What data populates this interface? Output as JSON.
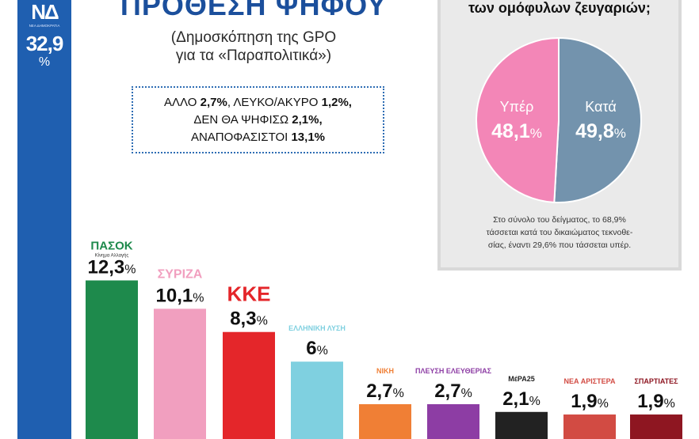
{
  "title": "ΠΡΟΘΕΣΗ ΨΗΦΟΥ",
  "subtitle_line1": "(Δημοσκόπηση της GPO",
  "subtitle_line2": "για τα «Παραπολιτικά»)",
  "info": [
    {
      "label": "ΑΛΛΟ",
      "value": "2,7%",
      "label2": "ΛΕΥΚΟ/ΑΚΥΡΟ",
      "value2": "1,2%,"
    },
    {
      "label": "ΔΕΝ ΘΑ ΨΗΦΙΣΩ",
      "value": "2,1%,"
    },
    {
      "label": "ΑΝΑΠΟΦΑΣΙΣΤΟΙ",
      "value": "13,1%"
    }
  ],
  "nd": {
    "logo": "ΝΔ",
    "logo_sub": "ΝΕΑ ΔΗΜΟΚΡΑΤΙΑ",
    "value": "32,9",
    "unit": "%"
  },
  "chart_data": [
    {
      "type": "bar",
      "title": "ΠΡΟΘΕΣΗ ΨΗΦΟΥ",
      "categories": [
        "ΝΔ",
        "ΠΑΣΟΚ",
        "ΣΥΡΙΖΑ",
        "ΚΚΕ",
        "ΕΛΛΗΝΙΚΗ ΛΥΣΗ",
        "ΝΙΚΗ",
        "ΠΛΕΥΣΗ ΕΛΕΥΘΕΡΙΑΣ",
        "ΜέΡΑ25",
        "ΝΕΑ ΑΡΙΣΤΕΡΑ",
        "ΣΠΑΡΤΙΑΤΕΣ"
      ],
      "values": [
        32.9,
        12.3,
        10.1,
        8.3,
        6,
        2.7,
        2.7,
        2.1,
        1.9,
        1.9
      ],
      "value_labels": [
        "32,9",
        "12,3",
        "10,1",
        "8,3",
        "6",
        "2,7",
        "2,7",
        "2,1",
        "1,9",
        "1,9"
      ],
      "unit": "%",
      "logo_texts": [
        "ΝΔ",
        "ΠΑΣΟΚ",
        "ΣΥΡΙΖΑ",
        "ΚΚΕ",
        "ΕΛΛΗΝΙΚΗ ΛΥΣΗ",
        "ΝΙΚΗ",
        "ΠΛΕΥΣΗ ΕΛΕΥΘΕΡΙΑΣ",
        "ΜέΡΑ25",
        "ΝΕΑ ΑΡΙΣΤΕΡΑ",
        "ΣΠΑΡΤΙΑΤΕΣ"
      ],
      "logo_subtexts": [
        "ΝΕΑ ΔΗΜΟΚΡΑΤΙΑ",
        "Κίνημα Αλλαγής",
        "",
        "",
        "",
        "",
        "",
        "",
        "",
        ""
      ],
      "colors": [
        "#1f5fb0",
        "#1e8a4c",
        "#f19fbf",
        "#e4262a",
        "#7fd0e0",
        "#f07f35",
        "#8d3da4",
        "#222222",
        "#d24b43",
        "#8e1621"
      ]
    },
    {
      "type": "pie",
      "title": "των ομόφυλων ζευγαριών;",
      "labels": [
        "Υπέρ",
        "Κατά"
      ],
      "values": [
        48.1,
        49.8
      ],
      "value_labels": [
        "48,1",
        "49,8"
      ],
      "unit": "%",
      "colors": [
        "#f386b7",
        "#7393ad"
      ]
    }
  ],
  "panel": {
    "question": "των ομόφυλων ζευγαριών;",
    "note_line1": "Στο σύνολο του δείγματος, το 68,9%",
    "note_line2": "τάσσεται κατά του δικαιώματος τεκνοθε-",
    "note_line3": "σίας, έναντι 29,6% που τάσσεται υπέρ."
  }
}
